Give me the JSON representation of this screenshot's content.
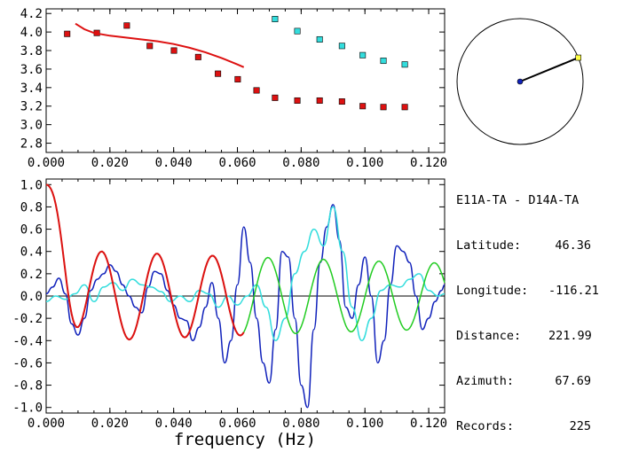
{
  "station_pair": {
    "a": "E11A-TA",
    "sep": "-",
    "b": "D14A-TA"
  },
  "info": [
    {
      "label": "Latitude:",
      "value": "46.36"
    },
    {
      "label": "Longitude:",
      "value": "-116.21"
    },
    {
      "label": "Distance:",
      "value": "221.99"
    },
    {
      "label": "Azimuth:",
      "value": "67.69"
    },
    {
      "label": "Records:",
      "value": "225"
    }
  ],
  "azimuth_deg": 67.69,
  "colors": {
    "red": "#dd1111",
    "cyan": "#33dddd",
    "blue": "#1122bb",
    "green": "#22cc22",
    "marker": "#ffff44"
  },
  "chart_data": [
    {
      "type": "scatter",
      "xlim": [
        0.0,
        0.125
      ],
      "ylim": [
        2.7,
        4.25
      ],
      "x_ticks": [
        "0.000",
        "0.020",
        "0.040",
        "0.060",
        "0.080",
        "0.100",
        "0.120"
      ],
      "y_ticks": [
        "4.2",
        "4.0",
        "3.8",
        "3.6",
        "3.4",
        "3.2",
        "3.0",
        "2.8"
      ],
      "series": [
        {
          "color": "red",
          "marker": "square",
          "x": [
            0.0066,
            0.0159,
            0.0253,
            0.0325,
            0.0401,
            0.0477,
            0.0539,
            0.0601,
            0.066,
            0.0718,
            0.0788,
            0.0858,
            0.0928,
            0.0993,
            0.1058,
            0.1125
          ],
          "y": [
            3.98,
            3.99,
            4.07,
            3.85,
            3.8,
            3.73,
            3.55,
            3.49,
            3.37,
            3.29,
            3.26,
            3.26,
            3.25,
            3.2,
            3.19,
            3.19
          ]
        },
        {
          "color": "cyan",
          "marker": "square",
          "x": [
            0.0718,
            0.0788,
            0.0858,
            0.0928,
            0.0993,
            0.1058,
            0.1125
          ],
          "y": [
            4.14,
            4.01,
            3.92,
            3.85,
            3.75,
            3.69,
            3.65
          ]
        },
        {
          "color": "red",
          "marker": "line",
          "x": [
            0.0092,
            0.012,
            0.015,
            0.02,
            0.025,
            0.03,
            0.035,
            0.04,
            0.045,
            0.05,
            0.055,
            0.06,
            0.062
          ],
          "y": [
            4.09,
            4.03,
            3.99,
            3.96,
            3.94,
            3.92,
            3.9,
            3.87,
            3.83,
            3.78,
            3.72,
            3.65,
            3.62
          ]
        }
      ]
    },
    {
      "type": "line",
      "xlabel": "frequency (Hz)",
      "xlim": [
        0.0,
        0.125
      ],
      "ylim": [
        -1.05,
        1.05
      ],
      "x_ticks": [
        "0.000",
        "0.020",
        "0.040",
        "0.060",
        "0.080",
        "0.100",
        "0.120"
      ],
      "y_ticks": [
        "1.0",
        "0.8",
        "0.6",
        "0.4",
        "0.2",
        "0.0",
        "-0.2",
        "-0.4",
        "-0.6",
        "-0.8",
        "-1.0"
      ],
      "series": [
        {
          "color": "blue",
          "x": [
            0,
            0.002,
            0.004,
            0.006,
            0.008,
            0.01,
            0.012,
            0.014,
            0.016,
            0.018,
            0.02,
            0.022,
            0.024,
            0.026,
            0.028,
            0.03,
            0.032,
            0.034,
            0.036,
            0.038,
            0.04,
            0.042,
            0.044,
            0.046,
            0.048,
            0.05,
            0.052,
            0.054,
            0.056,
            0.058,
            0.06,
            0.062,
            0.064,
            0.066,
            0.068,
            0.07,
            0.072,
            0.074,
            0.076,
            0.078,
            0.08,
            0.082,
            0.084,
            0.086,
            0.088,
            0.09,
            0.092,
            0.094,
            0.096,
            0.098,
            0.1,
            0.102,
            0.104,
            0.106,
            0.108,
            0.11,
            0.112,
            0.114,
            0.116,
            0.118,
            0.12,
            0.122,
            0.124,
            0.125
          ],
          "y": [
            0.02,
            0.08,
            0.16,
            0.02,
            -0.25,
            -0.35,
            -0.2,
            0.05,
            0.15,
            0.2,
            0.28,
            0.22,
            0.1,
            0.0,
            -0.1,
            -0.15,
            0.08,
            0.22,
            0.2,
            0.05,
            -0.08,
            -0.2,
            -0.22,
            -0.4,
            -0.28,
            -0.1,
            0.12,
            -0.2,
            -0.6,
            -0.4,
            0.1,
            0.62,
            0.3,
            -0.2,
            -0.6,
            -0.78,
            -0.3,
            0.4,
            0.35,
            -0.2,
            -0.8,
            -1.0,
            -0.3,
            0.3,
            0.62,
            0.82,
            0.5,
            -0.1,
            -0.2,
            0.1,
            0.35,
            0.0,
            -0.6,
            -0.4,
            0.1,
            0.45,
            0.4,
            0.3,
            0.0,
            -0.3,
            -0.2,
            -0.05,
            0.05,
            0.1
          ]
        },
        {
          "color": "cyan",
          "x": [
            0,
            0.003,
            0.006,
            0.009,
            0.012,
            0.015,
            0.018,
            0.021,
            0.024,
            0.027,
            0.03,
            0.033,
            0.036,
            0.039,
            0.042,
            0.045,
            0.048,
            0.051,
            0.054,
            0.057,
            0.06,
            0.063,
            0.066,
            0.069,
            0.072,
            0.075,
            0.078,
            0.081,
            0.084,
            0.087,
            0.09,
            0.093,
            0.096,
            0.099,
            0.102,
            0.105,
            0.108,
            0.111,
            0.114,
            0.117,
            0.12,
            0.123,
            0.125
          ],
          "y": [
            -0.05,
            0.0,
            -0.03,
            0.02,
            0.1,
            -0.05,
            0.08,
            0.12,
            0.05,
            0.15,
            0.1,
            0.08,
            0.04,
            -0.05,
            0.0,
            -0.05,
            0.05,
            0.02,
            -0.1,
            0.0,
            -0.08,
            0.0,
            0.1,
            -0.1,
            -0.4,
            -0.2,
            0.2,
            0.4,
            0.6,
            0.45,
            0.8,
            0.4,
            -0.1,
            -0.4,
            -0.2,
            0.05,
            0.1,
            0.08,
            0.15,
            0.2,
            0.05,
            0.0,
            0.02
          ]
        },
        {
          "color": "green",
          "fn": "envelope_cos",
          "amp": 0.42,
          "period": 0.0174,
          "decay": 0.4
        },
        {
          "color": "red",
          "fn": "envelope_cos",
          "amp": 0.42,
          "period": 0.0174,
          "decay": 0.4,
          "xmax": 0.062
        }
      ]
    }
  ]
}
